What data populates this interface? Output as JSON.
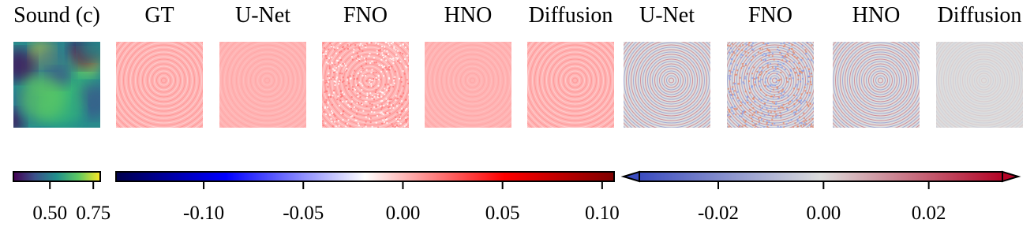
{
  "panels": [
    {
      "title": "Sound (c)",
      "kind": "sound"
    },
    {
      "title": "GT",
      "kind": "wave"
    },
    {
      "title": "U-Net",
      "kind": "wave"
    },
    {
      "title": "FNO",
      "kind": "noise"
    },
    {
      "title": "HNO",
      "kind": "wave"
    },
    {
      "title": "Diffusion",
      "kind": "wave"
    },
    {
      "title": "U-Net",
      "kind": "error"
    },
    {
      "title": "FNO",
      "kind": "error-noise"
    },
    {
      "title": "HNO",
      "kind": "error"
    },
    {
      "title": "Diffusion",
      "kind": "error-faint"
    }
  ],
  "colorbars": [
    {
      "colormap": "viridis",
      "range": [
        0.29,
        0.79
      ],
      "ticks": [
        {
          "value": 0.5,
          "label": "0.50"
        },
        {
          "value": 0.75,
          "label": "0.75"
        }
      ]
    },
    {
      "colormap": "seismic",
      "range": [
        -0.144,
        0.106
      ],
      "ticks": [
        {
          "value": -0.1,
          "label": "-0.10"
        },
        {
          "value": -0.05,
          "label": "-0.05"
        },
        {
          "value": 0,
          "label": "0.00"
        },
        {
          "value": 0.05,
          "label": "0.05"
        },
        {
          "value": 0.1,
          "label": "0.10"
        }
      ]
    },
    {
      "colormap": "coolwarm",
      "range": [
        -0.035,
        0.034
      ],
      "ticks": [
        {
          "value": -0.02,
          "label": "-0.02"
        },
        {
          "value": 0,
          "label": "0.00"
        },
        {
          "value": 0.02,
          "label": "0.02"
        }
      ]
    }
  ]
}
